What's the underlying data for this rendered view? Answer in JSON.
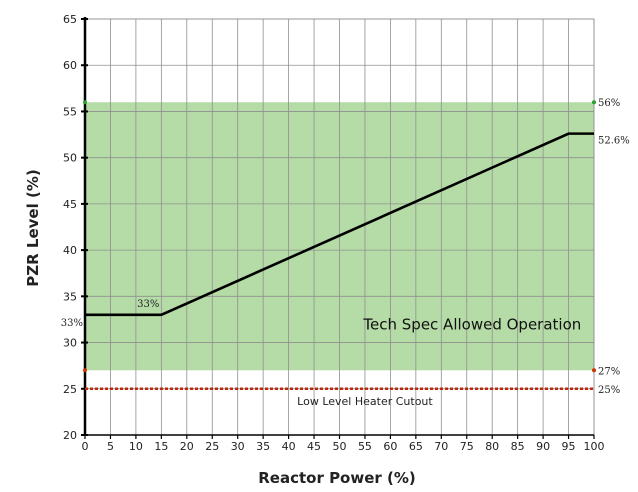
{
  "chart_data": {
    "type": "line",
    "xlabel": "Reactor Power (%)",
    "ylabel": "PZR Level (%)",
    "xlim": [
      0,
      100
    ],
    "ylim": [
      20,
      65
    ],
    "x_ticks": [
      0,
      5,
      10,
      15,
      20,
      25,
      30,
      35,
      40,
      45,
      50,
      55,
      60,
      65,
      70,
      75,
      80,
      85,
      90,
      95,
      100
    ],
    "y_ticks": [
      20,
      25,
      30,
      35,
      40,
      45,
      50,
      55,
      60,
      65
    ],
    "grid": true,
    "series": [
      {
        "x": [
          0,
          15,
          95,
          100
        ],
        "y": [
          33,
          33,
          52.6,
          52.6
        ],
        "color": "#000000"
      }
    ],
    "band": {
      "label": "Tech Spec Allowed Operation",
      "y_range": [
        27,
        56
      ],
      "color": "#b5dca6"
    },
    "hline": {
      "label": "Low Level Heater Cutout",
      "y": 25,
      "color": "#cc2200"
    },
    "annotations": [
      {
        "text": "33%",
        "x": 15,
        "y": 33,
        "where": "above-left"
      },
      {
        "text": "33%",
        "x": 0,
        "y": 33,
        "where": "left-axis"
      },
      {
        "text": "56%",
        "x": 100,
        "y": 56,
        "where": "right"
      },
      {
        "text": "52.6%",
        "x": 100,
        "y": 52.6,
        "where": "right"
      },
      {
        "text": "27%",
        "x": 100,
        "y": 27,
        "where": "right"
      },
      {
        "text": "25%",
        "x": 100,
        "y": 25,
        "where": "right"
      }
    ]
  }
}
